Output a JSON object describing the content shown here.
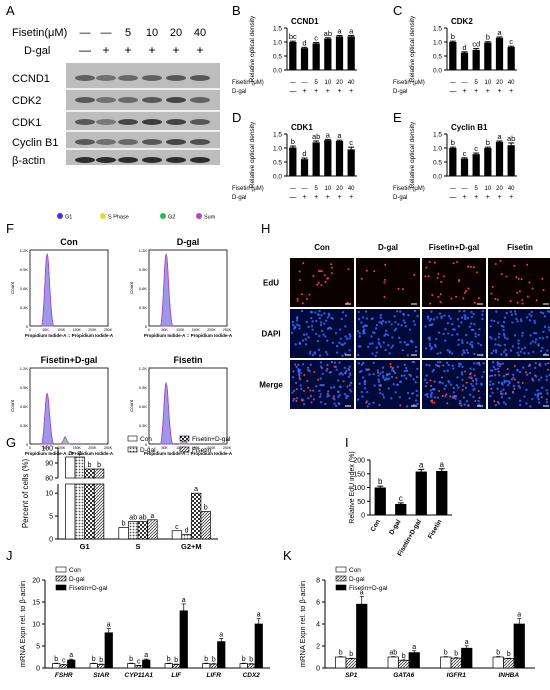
{
  "panel_letters": {
    "A": "A",
    "B": "B",
    "C": "C",
    "D": "D",
    "E": "E",
    "F": "F",
    "G": "G",
    "H": "H",
    "I": "I",
    "J": "J",
    "K": "K"
  },
  "blot": {
    "fisetin_header": "Fisetin(μM)",
    "dgal_header": "D-gal",
    "fisetin_values": [
      "—",
      "—",
      "5",
      "10",
      "20",
      "40"
    ],
    "dgal_values": [
      "—",
      "+",
      "+",
      "+",
      "+",
      "+"
    ],
    "proteins": [
      "CCND1",
      "CDK2",
      "CDK1",
      "Cyclin B1",
      "β-actin"
    ]
  },
  "bar_common": {
    "ylabel": "Relative optical density",
    "fisetin_row_label": "Fisetin (μM)",
    "dgal_row_label": "D-gal",
    "fisetin_ticks": [
      "—",
      "—",
      "5",
      "10",
      "20",
      "40"
    ],
    "dgal_ticks": [
      "—",
      "+",
      "+",
      "+",
      "+",
      "+"
    ]
  },
  "flow": {
    "legend": [
      "G1",
      "S Phase",
      "G2",
      "Sum"
    ],
    "legend_colors": [
      "#3b3bd9",
      "#e8d93a",
      "#2fb84a",
      "#c03fc0"
    ],
    "titles": [
      "Con",
      "D-gal",
      "Fisetin+D-gal",
      "Fisetin"
    ],
    "xlabel": "Propidium Iodide-A :: Propidium Iodide-A",
    "ylabel": "Count",
    "yticks": [
      "1.2K",
      "0.9K",
      "0.6K",
      "0.3K",
      "0"
    ],
    "xticks": [
      "0",
      "50K",
      "100K",
      "150K",
      "200K",
      "250K"
    ]
  },
  "edu": {
    "columns": [
      "Con",
      "D-gal",
      "Fisetin+D-gal",
      "Fisetin"
    ],
    "rows": [
      "EdU",
      "DAPI",
      "Merge"
    ]
  },
  "chart_data": [
    {
      "panel": "B",
      "type": "bar",
      "title": "CCND1",
      "ylabel": "Relative optical density",
      "categories": [
        "Con",
        "D-gal",
        "5",
        "10",
        "20",
        "40"
      ],
      "values": [
        1.0,
        0.78,
        0.95,
        1.12,
        1.2,
        1.2
      ],
      "errors": [
        0.03,
        0.03,
        0.03,
        0.03,
        0.03,
        0.03
      ],
      "letters": [
        "bc",
        "d",
        "c",
        "ab",
        "a",
        "a"
      ],
      "ylim": [
        0,
        1.5
      ],
      "yticks": [
        "0.0",
        "0.5",
        "1.0",
        "1.5"
      ]
    },
    {
      "panel": "C",
      "type": "bar",
      "title": "CDK2",
      "ylabel": "Relative optical density",
      "categories": [
        "Con",
        "D-gal",
        "5",
        "10",
        "20",
        "40"
      ],
      "values": [
        1.0,
        0.62,
        0.72,
        0.98,
        1.15,
        0.82
      ],
      "errors": [
        0.03,
        0.03,
        0.05,
        0.03,
        0.03,
        0.03
      ],
      "letters": [
        "b",
        "d",
        "cd",
        "b",
        "a",
        "c"
      ],
      "ylim": [
        0,
        1.5
      ],
      "yticks": [
        "0.0",
        "0.5",
        "1.0",
        "1.5"
      ]
    },
    {
      "panel": "D",
      "type": "bar",
      "title": "CDK1",
      "ylabel": "Relative optical density",
      "categories": [
        "Con",
        "D-gal",
        "5",
        "10",
        "20",
        "40"
      ],
      "values": [
        1.02,
        0.6,
        1.2,
        1.28,
        1.25,
        0.95
      ],
      "errors": [
        0.05,
        0.04,
        0.05,
        0.03,
        0.03,
        0.08
      ],
      "letters": [
        "b",
        "d",
        "ab",
        "a",
        "a",
        "c"
      ],
      "ylim": [
        0,
        1.5
      ],
      "yticks": [
        "0.0",
        "0.5",
        "1.0",
        "1.5"
      ]
    },
    {
      "panel": "E",
      "type": "bar",
      "title": "Cyclin B1",
      "ylabel": "Relative optical density",
      "categories": [
        "Con",
        "D-gal",
        "5",
        "10",
        "20",
        "40"
      ],
      "values": [
        1.0,
        0.62,
        0.78,
        1.0,
        1.22,
        1.1
      ],
      "errors": [
        0.03,
        0.03,
        0.04,
        0.03,
        0.03,
        0.08
      ],
      "letters": [
        "b",
        "c",
        "c",
        "b",
        "a",
        "ab"
      ],
      "ylim": [
        0,
        1.5
      ],
      "yticks": [
        "0.0",
        "0.5",
        "1.0",
        "1.5"
      ]
    },
    {
      "panel": "G",
      "type": "bar",
      "ylabel": "Percent of cells (%)",
      "categories": [
        "G1",
        "S",
        "G2+M"
      ],
      "series": [
        {
          "name": "Con",
          "values": [
            94,
            2.5,
            1.8
          ],
          "letters": [
            "a",
            "b",
            "c"
          ]
        },
        {
          "name": "D-gal",
          "values": [
            94,
            3.8,
            1.0
          ],
          "letters": [
            "a",
            "ab",
            "d"
          ]
        },
        {
          "name": "Fisetin+D-gal",
          "values": [
            86,
            3.8,
            10
          ],
          "letters": [
            "b",
            "ab",
            "a"
          ]
        },
        {
          "name": "Fisetin",
          "values": [
            86,
            4.2,
            6.0
          ],
          "letters": [
            "b",
            "a",
            "b"
          ]
        }
      ],
      "yticks_low": [
        "0",
        "5",
        "10"
      ],
      "yticks_high": [
        "80",
        "90",
        "100"
      ]
    },
    {
      "panel": "I",
      "type": "bar",
      "ylabel": "Relative EdU index (%)",
      "categories": [
        "Con",
        "D-gal",
        "Fisetin+D-gal",
        "Fisetin"
      ],
      "values": [
        100,
        40,
        158,
        160
      ],
      "errors": [
        5,
        4,
        8,
        8
      ],
      "letters": [
        "b",
        "c",
        "a",
        "a"
      ],
      "ylim": [
        0,
        200
      ],
      "yticks": [
        "0",
        "50",
        "100",
        "150",
        "200"
      ]
    },
    {
      "panel": "J",
      "type": "bar",
      "ylabel": "mRNA Expn rel. to β-actin",
      "categories": [
        "FSHR",
        "StAR",
        "CYP11A1",
        "LIF",
        "LIFR",
        "CDX2"
      ],
      "series": [
        {
          "name": "Con",
          "values": [
            1.0,
            1.0,
            1.0,
            1.0,
            1.0,
            1.0
          ],
          "letters": [
            "b",
            "b",
            "b",
            "b",
            "b",
            "b"
          ]
        },
        {
          "name": "D-gal",
          "values": [
            0.7,
            0.8,
            0.5,
            0.8,
            0.9,
            0.9
          ],
          "letters": [
            "c",
            "b",
            "c",
            "b",
            "b",
            "b"
          ]
        },
        {
          "name": "Fisetin+D-gal",
          "values": [
            1.8,
            8.0,
            1.8,
            13.0,
            6.0,
            10.0
          ],
          "letters": [
            "a",
            "a",
            "a",
            "a",
            "a",
            "a"
          ]
        }
      ],
      "ylim": [
        0,
        20
      ],
      "yticks": [
        "0",
        "5",
        "10",
        "15",
        "20"
      ]
    },
    {
      "panel": "K",
      "type": "bar",
      "ylabel": "mRNA Expn rel. to β-actin",
      "categories": [
        "SP1",
        "GATA6",
        "IGFR1",
        "INHBA"
      ],
      "series": [
        {
          "name": "Con",
          "values": [
            1.0,
            1.0,
            1.0,
            1.0
          ],
          "letters": [
            "b",
            "ab",
            "b",
            "b"
          ]
        },
        {
          "name": "D-gal",
          "values": [
            0.85,
            0.7,
            0.9,
            0.85
          ],
          "letters": [
            "b",
            "b",
            "b",
            "b"
          ]
        },
        {
          "name": "Fisetin+D-gal",
          "values": [
            5.8,
            1.4,
            1.8,
            4.0
          ],
          "letters": [
            "a",
            "a",
            "a",
            "a"
          ]
        }
      ],
      "ylim": [
        0,
        8
      ],
      "yticks": [
        "0",
        "2",
        "4",
        "6",
        "8"
      ]
    }
  ]
}
